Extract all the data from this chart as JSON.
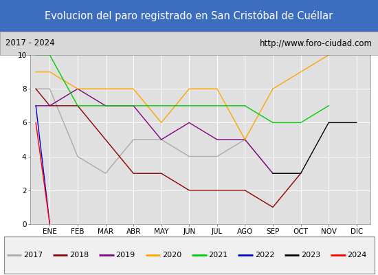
{
  "title": "Evolucion del paro registrado en San Cristóbal de Cuéllar",
  "subtitle_left": "2017 - 2024",
  "subtitle_right": "http://www.foro-ciudad.com",
  "months": [
    "ENE",
    "FEB",
    "MAR",
    "ABR",
    "MAY",
    "JUN",
    "JUL",
    "AGO",
    "SEP",
    "OCT",
    "NOV",
    "DIC"
  ],
  "ylim": [
    0,
    10
  ],
  "yticks": [
    0,
    2,
    4,
    6,
    8,
    10
  ],
  "series": {
    "2017": {
      "color": "#aaaaaa",
      "values": [
        8,
        4,
        3,
        5,
        5,
        4,
        4,
        5,
        3,
        3,
        null,
        null
      ],
      "pre": 8
    },
    "2018": {
      "color": "#8b0000",
      "values": [
        7,
        7,
        5,
        3,
        3,
        2,
        2,
        2,
        1,
        3,
        null,
        null
      ],
      "pre": 8
    },
    "2019": {
      "color": "#800080",
      "values": [
        7,
        8,
        7,
        7,
        5,
        6,
        5,
        5,
        3,
        null,
        null,
        null
      ],
      "pre": 7
    },
    "2020": {
      "color": "#ffa500",
      "values": [
        9,
        8,
        8,
        8,
        6,
        8,
        8,
        5,
        8,
        9,
        10,
        null
      ],
      "pre": 9
    },
    "2021": {
      "color": "#00cc00",
      "values": [
        10,
        7,
        7,
        7,
        7,
        7,
        7,
        7,
        6,
        6,
        7,
        null
      ],
      "pre": 10
    },
    "2022": {
      "color": "#0000cc",
      "values": [
        null,
        null,
        null,
        null,
        null,
        null,
        null,
        null,
        null,
        null,
        null,
        null
      ],
      "pre": 7
    },
    "2023": {
      "color": "#000000",
      "values": [
        null,
        null,
        null,
        null,
        null,
        null,
        null,
        null,
        3,
        3,
        6,
        6
      ],
      "pre": null
    },
    "2024": {
      "color": "#ff0000",
      "values": [
        null,
        null,
        null,
        null,
        null,
        null,
        null,
        null,
        null,
        null,
        null,
        null
      ],
      "pre": 6
    }
  },
  "title_bg_color": "#3c6dbf",
  "title_text_color": "#ffffff",
  "subtitle_bg_color": "#d8d8d8",
  "plot_bg_color": "#e0e0e0",
  "legend_bg_color": "#f0f0f0",
  "title_fontsize": 10.5,
  "subtitle_fontsize": 8.5,
  "tick_fontsize": 7.5,
  "legend_fontsize": 8
}
